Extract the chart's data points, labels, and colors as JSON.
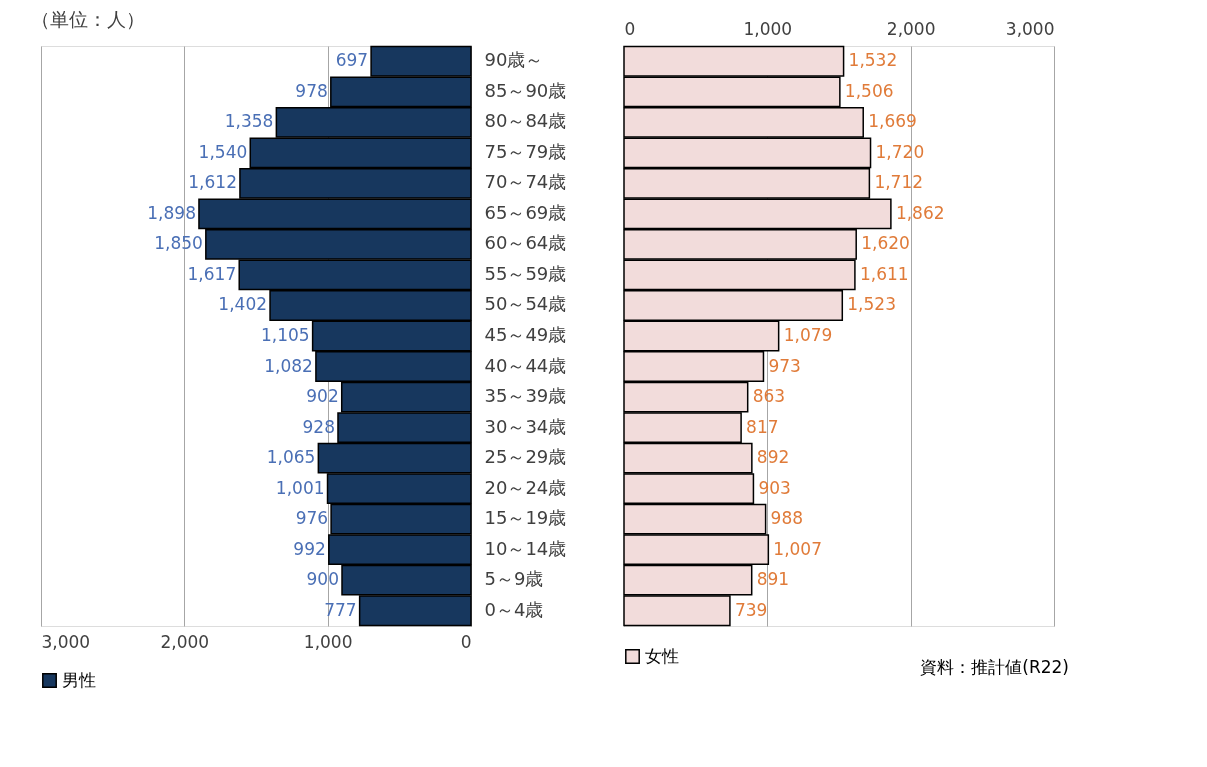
{
  "chart_data": [
    {
      "type": "bar",
      "orientation": "horizontal",
      "categories": [
        null,
        null,
        null,
        null,
        null,
        null,
        null,
        null,
        null,
        null,
        null,
        null,
        null,
        null,
        null,
        null,
        null,
        null,
        null
      ],
      "series": [
        {
          "name": "男性",
          "color": "#17375e",
          "values": [
            697,
            978,
            1358,
            1540,
            1612,
            1898,
            1850,
            1617,
            1402,
            1105,
            1082,
            902,
            928,
            1065,
            1001,
            976,
            992,
            900,
            777
          ],
          "value_labels": [
            "697",
            "978",
            "1,358",
            "1,540",
            "1,612",
            "1,898",
            "1,850",
            "1,617",
            "1,402",
            "1,105",
            "1,082",
            "902",
            "928",
            "1,065",
            "1,001",
            "976",
            "992",
            "900",
            "777"
          ]
        }
      ],
      "xlim": [
        3000,
        0
      ],
      "xticks": [
        {
          "value": 3000,
          "label": "3,000"
        },
        {
          "value": 2000,
          "label": "2,000"
        },
        {
          "value": 1000,
          "label": "1,000"
        },
        0
      ],
      "grid": "x",
      "legend": "bottom",
      "tick_labels": "x",
      "annotations": [
        "（単位：人）"
      ]
    },
    {
      "type": "bar",
      "orientation": "horizontal",
      "categories": [
        "90歳～",
        "85～90歳",
        "80～84歳",
        "75～79歳",
        "70～74歳",
        "65～69歳",
        "60～64歳",
        "55～59歳",
        "50～54歳",
        "45～49歳",
        "40～44歳",
        "35～39歳",
        "30～34歳",
        "25～29歳",
        "20～24歳",
        "15～19歳",
        "10～14歳",
        "5～9歳",
        "0～4歳"
      ],
      "series": [
        {
          "name": "女性",
          "color": "#f2dcdb",
          "axis": "x2",
          "values": [
            1532,
            1506,
            1669,
            1720,
            1712,
            1862,
            1620,
            1611,
            1523,
            1079,
            973,
            863,
            817,
            892,
            903,
            988,
            1007,
            891,
            739
          ],
          "value_labels": [
            "1,532",
            "1,506",
            "1,669",
            "1,720",
            "1,712",
            "1,862",
            "1,620",
            "1,611",
            "1,523",
            "1,079",
            "973",
            "863",
            "817",
            "892",
            "903",
            "988",
            "1,007",
            "891",
            "739"
          ]
        }
      ],
      "x2lim": [
        0,
        3000
      ],
      "x2ticks": [
        0,
        {
          "value": 1000,
          "label": "1,000"
        },
        {
          "value": 2000,
          "label": "2,000"
        },
        {
          "value": 3000,
          "label": "3,000"
        }
      ],
      "grid": "x",
      "legend": "bottom",
      "annotations": [
        "資料：推計値(R22)"
      ]
    }
  ]
}
